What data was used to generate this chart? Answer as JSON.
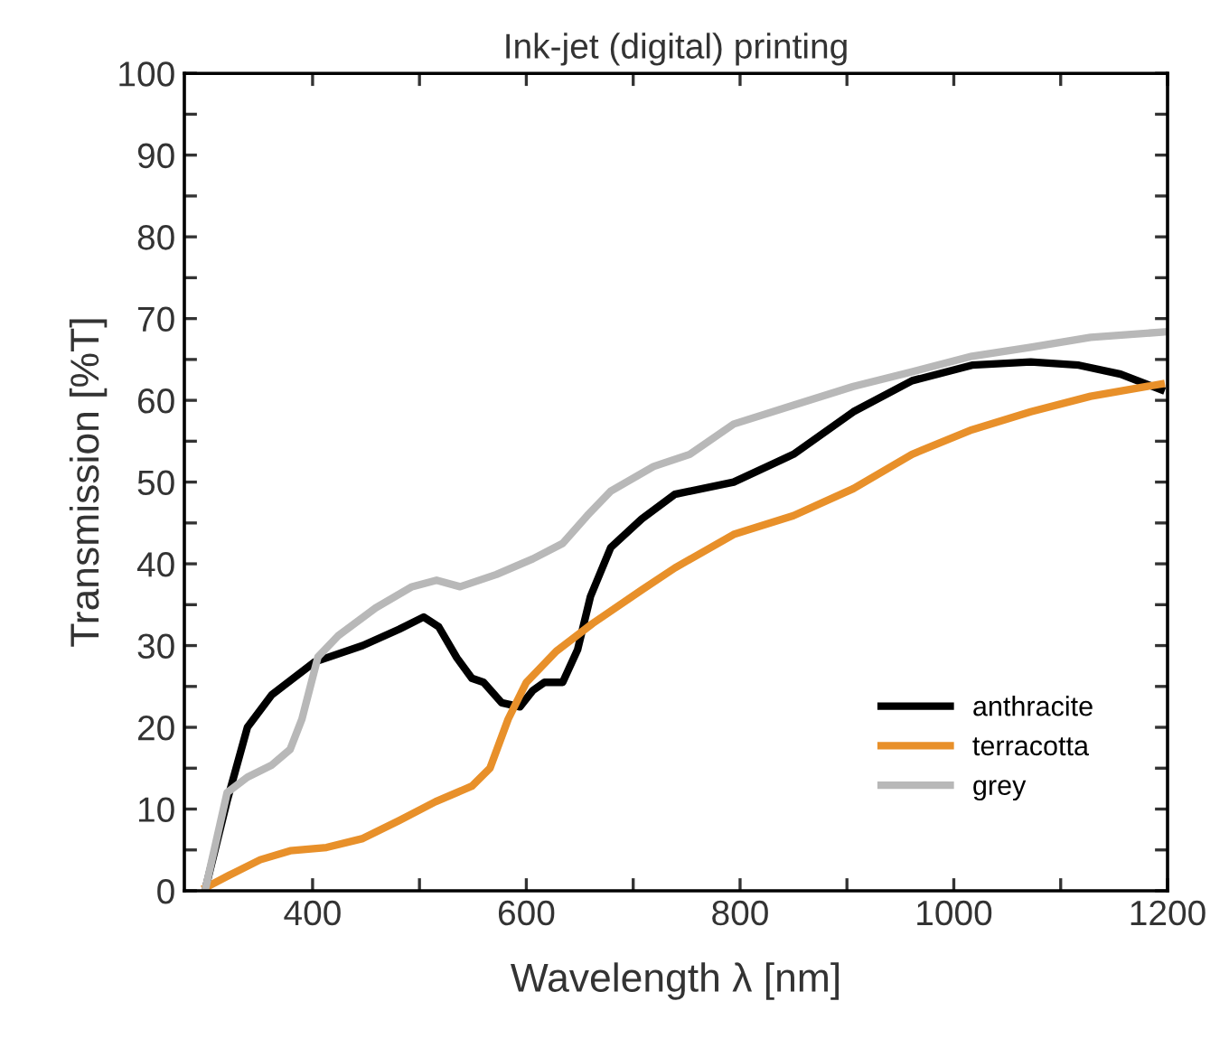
{
  "chart_data": {
    "type": "line",
    "title": "Ink-jet (digital) printing",
    "xlabel": "Wavelength λ [nm]",
    "ylabel": "Transmission [%T]",
    "xlim": [
      280,
      1200
    ],
    "ylim": [
      0,
      100
    ],
    "xticks": [
      400,
      {
        "value": 500,
        "label": null
      },
      600,
      {
        "value": 700,
        "label": null
      },
      800,
      {
        "value": 900,
        "label": null
      },
      1000,
      {
        "value": 1100,
        "label": null
      },
      1200
    ],
    "yticks": [
      0,
      {
        "value": 5,
        "label": null
      },
      10,
      {
        "value": 15,
        "label": null
      },
      20,
      {
        "value": 25,
        "label": null
      },
      30,
      {
        "value": 35,
        "label": null
      },
      40,
      {
        "value": 45,
        "label": null
      },
      50,
      {
        "value": 55,
        "label": null
      },
      60,
      {
        "value": 65,
        "label": null
      },
      70,
      {
        "value": 75,
        "label": null
      },
      80,
      {
        "value": 85,
        "label": null
      },
      90,
      {
        "value": 95,
        "label": null
      },
      100
    ],
    "grid": false,
    "legend": "bottom right",
    "line_style": "solid",
    "marker": "none",
    "series": [
      {
        "name": "anthracite",
        "color": "#000000",
        "x": [
          300,
          320,
          339,
          362,
          402,
          447,
          481,
          504,
          518,
          535,
          549,
          560,
          577,
          594,
          606,
          617,
          634,
          648,
          660,
          679,
          708,
          739,
          794,
          850,
          906,
          961,
          1017,
          1072,
          1117,
          1156,
          1194
        ],
        "values": [
          0.4,
          11,
          20,
          24,
          28,
          30,
          32,
          33.5,
          32.3,
          28.5,
          26,
          25.5,
          23,
          22.5,
          24.5,
          25.5,
          25.5,
          29.5,
          36,
          42,
          45.5,
          48.5,
          50,
          53.4,
          58.6,
          62.4,
          64.3,
          64.7,
          64.3,
          63.2,
          61.3
        ]
      },
      {
        "name": "terracotta",
        "color": "#e8902a",
        "x": [
          300,
          322,
          351,
          379,
          413,
          447,
          481,
          515,
          549,
          566,
          583,
          600,
          628,
          662,
          708,
          739,
          794,
          850,
          906,
          961,
          1017,
          1072,
          1128,
          1194
        ],
        "values": [
          0.4,
          1.9,
          3.8,
          4.9,
          5.3,
          6.4,
          8.6,
          10.9,
          12.8,
          15,
          21,
          25.5,
          29.3,
          32.7,
          36.8,
          39.5,
          43.6,
          45.9,
          49.2,
          53.4,
          56.4,
          58.6,
          60.5,
          62
        ]
      },
      {
        "name": "grey",
        "color": "#b8b8b8",
        "x": [
          300,
          320,
          339,
          362,
          379,
          390,
          405,
          424,
          459,
          493,
          516,
          538,
          572,
          606,
          634,
          657,
          679,
          719,
          753,
          794,
          850,
          906,
          961,
          1017,
          1072,
          1128,
          1200
        ],
        "values": [
          0.4,
          12,
          13.9,
          15.4,
          17.3,
          21,
          28.6,
          31.2,
          34.6,
          37.2,
          38,
          37.2,
          38.7,
          40.6,
          42.5,
          45.9,
          48.9,
          51.9,
          53.4,
          57.1,
          59.4,
          61.7,
          63.5,
          65.4,
          66.5,
          67.7,
          68.4
        ]
      }
    ]
  }
}
